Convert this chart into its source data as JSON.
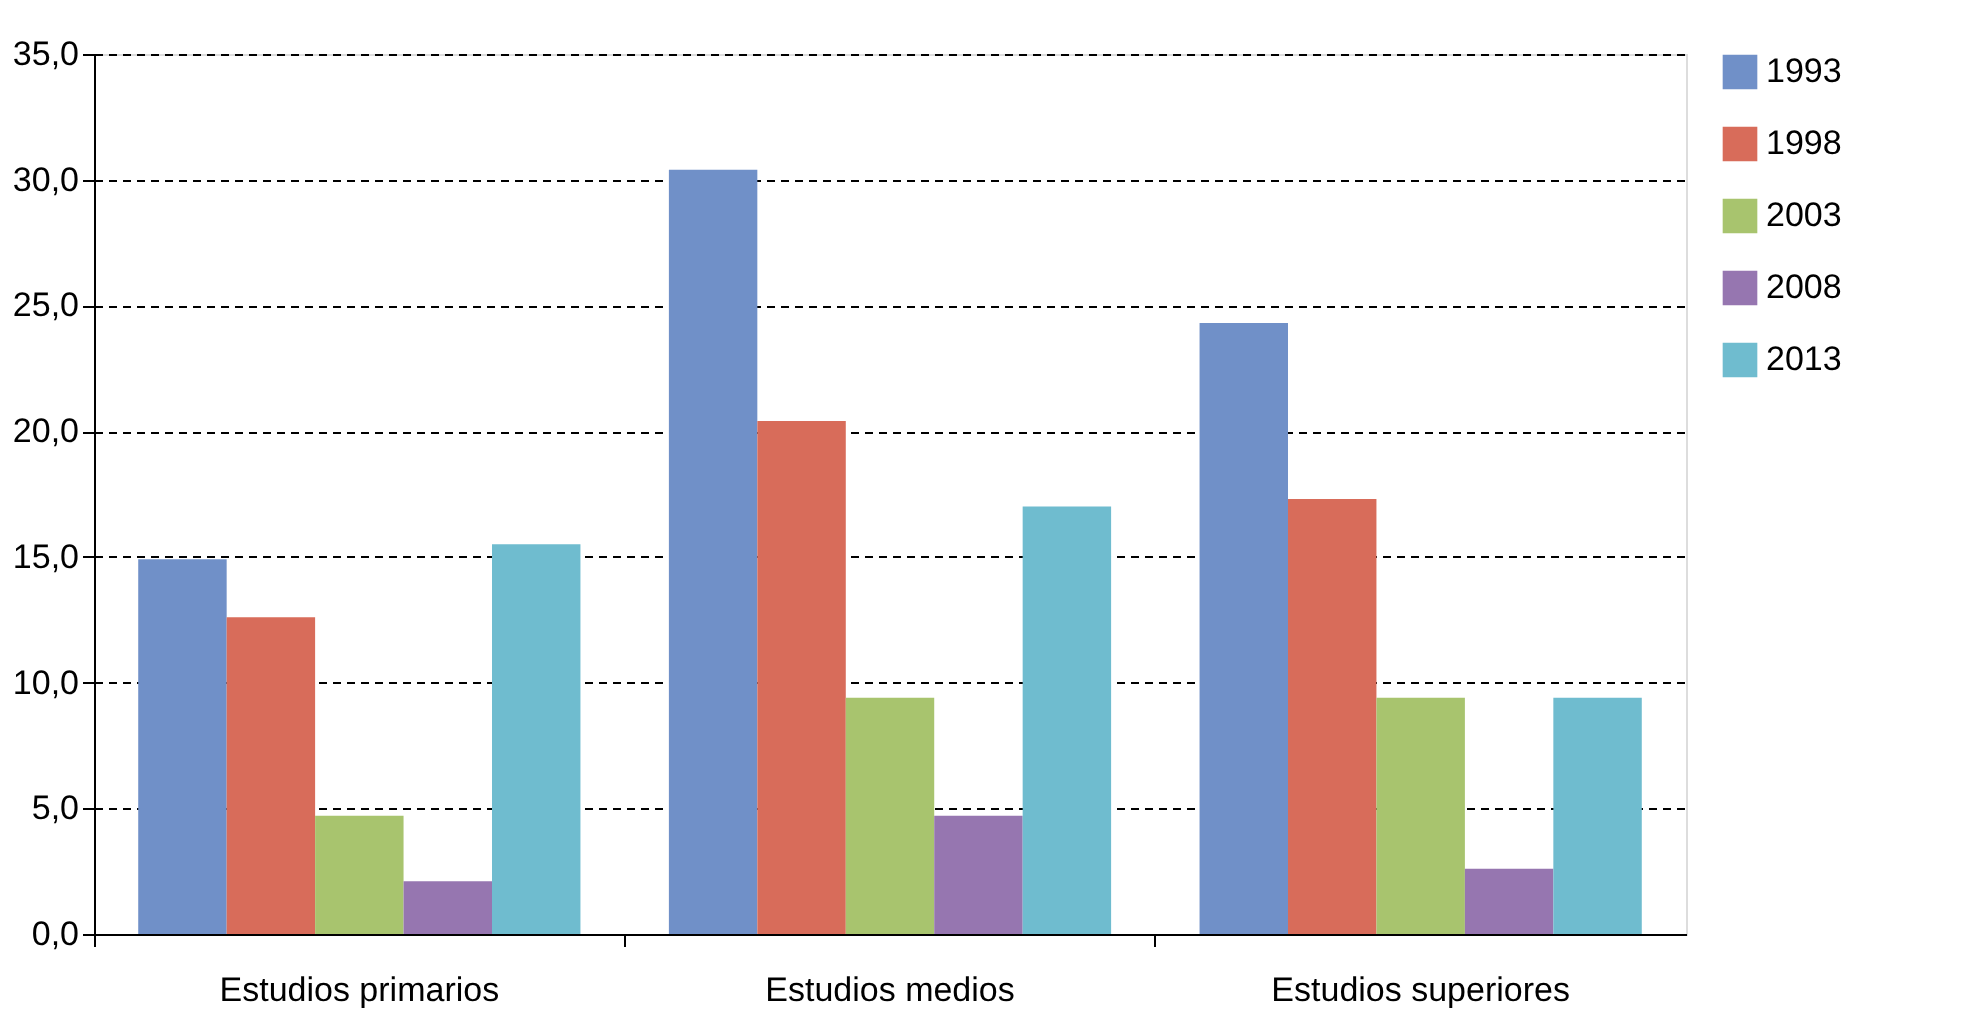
{
  "chart_data": {
    "type": "bar",
    "categories": [
      "Estudios primarios",
      "Estudios medios",
      "Estudios superiores"
    ],
    "series": [
      {
        "name": "1993",
        "color": "#7090c8",
        "values": [
          14.9,
          30.4,
          24.3
        ]
      },
      {
        "name": "1998",
        "color": "#d86c5a",
        "values": [
          12.6,
          20.4,
          17.3
        ]
      },
      {
        "name": "2003",
        "color": "#a8c46e",
        "values": [
          4.7,
          9.4,
          9.4
        ]
      },
      {
        "name": "2008",
        "color": "#9676b0",
        "values": [
          2.1,
          4.7,
          2.6
        ]
      },
      {
        "name": "2013",
        "color": "#6fbccf",
        "values": [
          15.5,
          17.0,
          9.4
        ]
      }
    ],
    "ylim": [
      0,
      35
    ],
    "yticks": [
      {
        "value": 0,
        "label": "0,0"
      },
      {
        "value": 5,
        "label": "5,0"
      },
      {
        "value": 10,
        "label": "10,0"
      },
      {
        "value": 15,
        "label": "15,0"
      },
      {
        "value": 20,
        "label": "20,0"
      },
      {
        "value": 25,
        "label": "25,0"
      },
      {
        "value": 30,
        "label": "30,0"
      },
      {
        "value": 35,
        "label": "35,0"
      }
    ],
    "grid": "y",
    "legend": "right"
  }
}
